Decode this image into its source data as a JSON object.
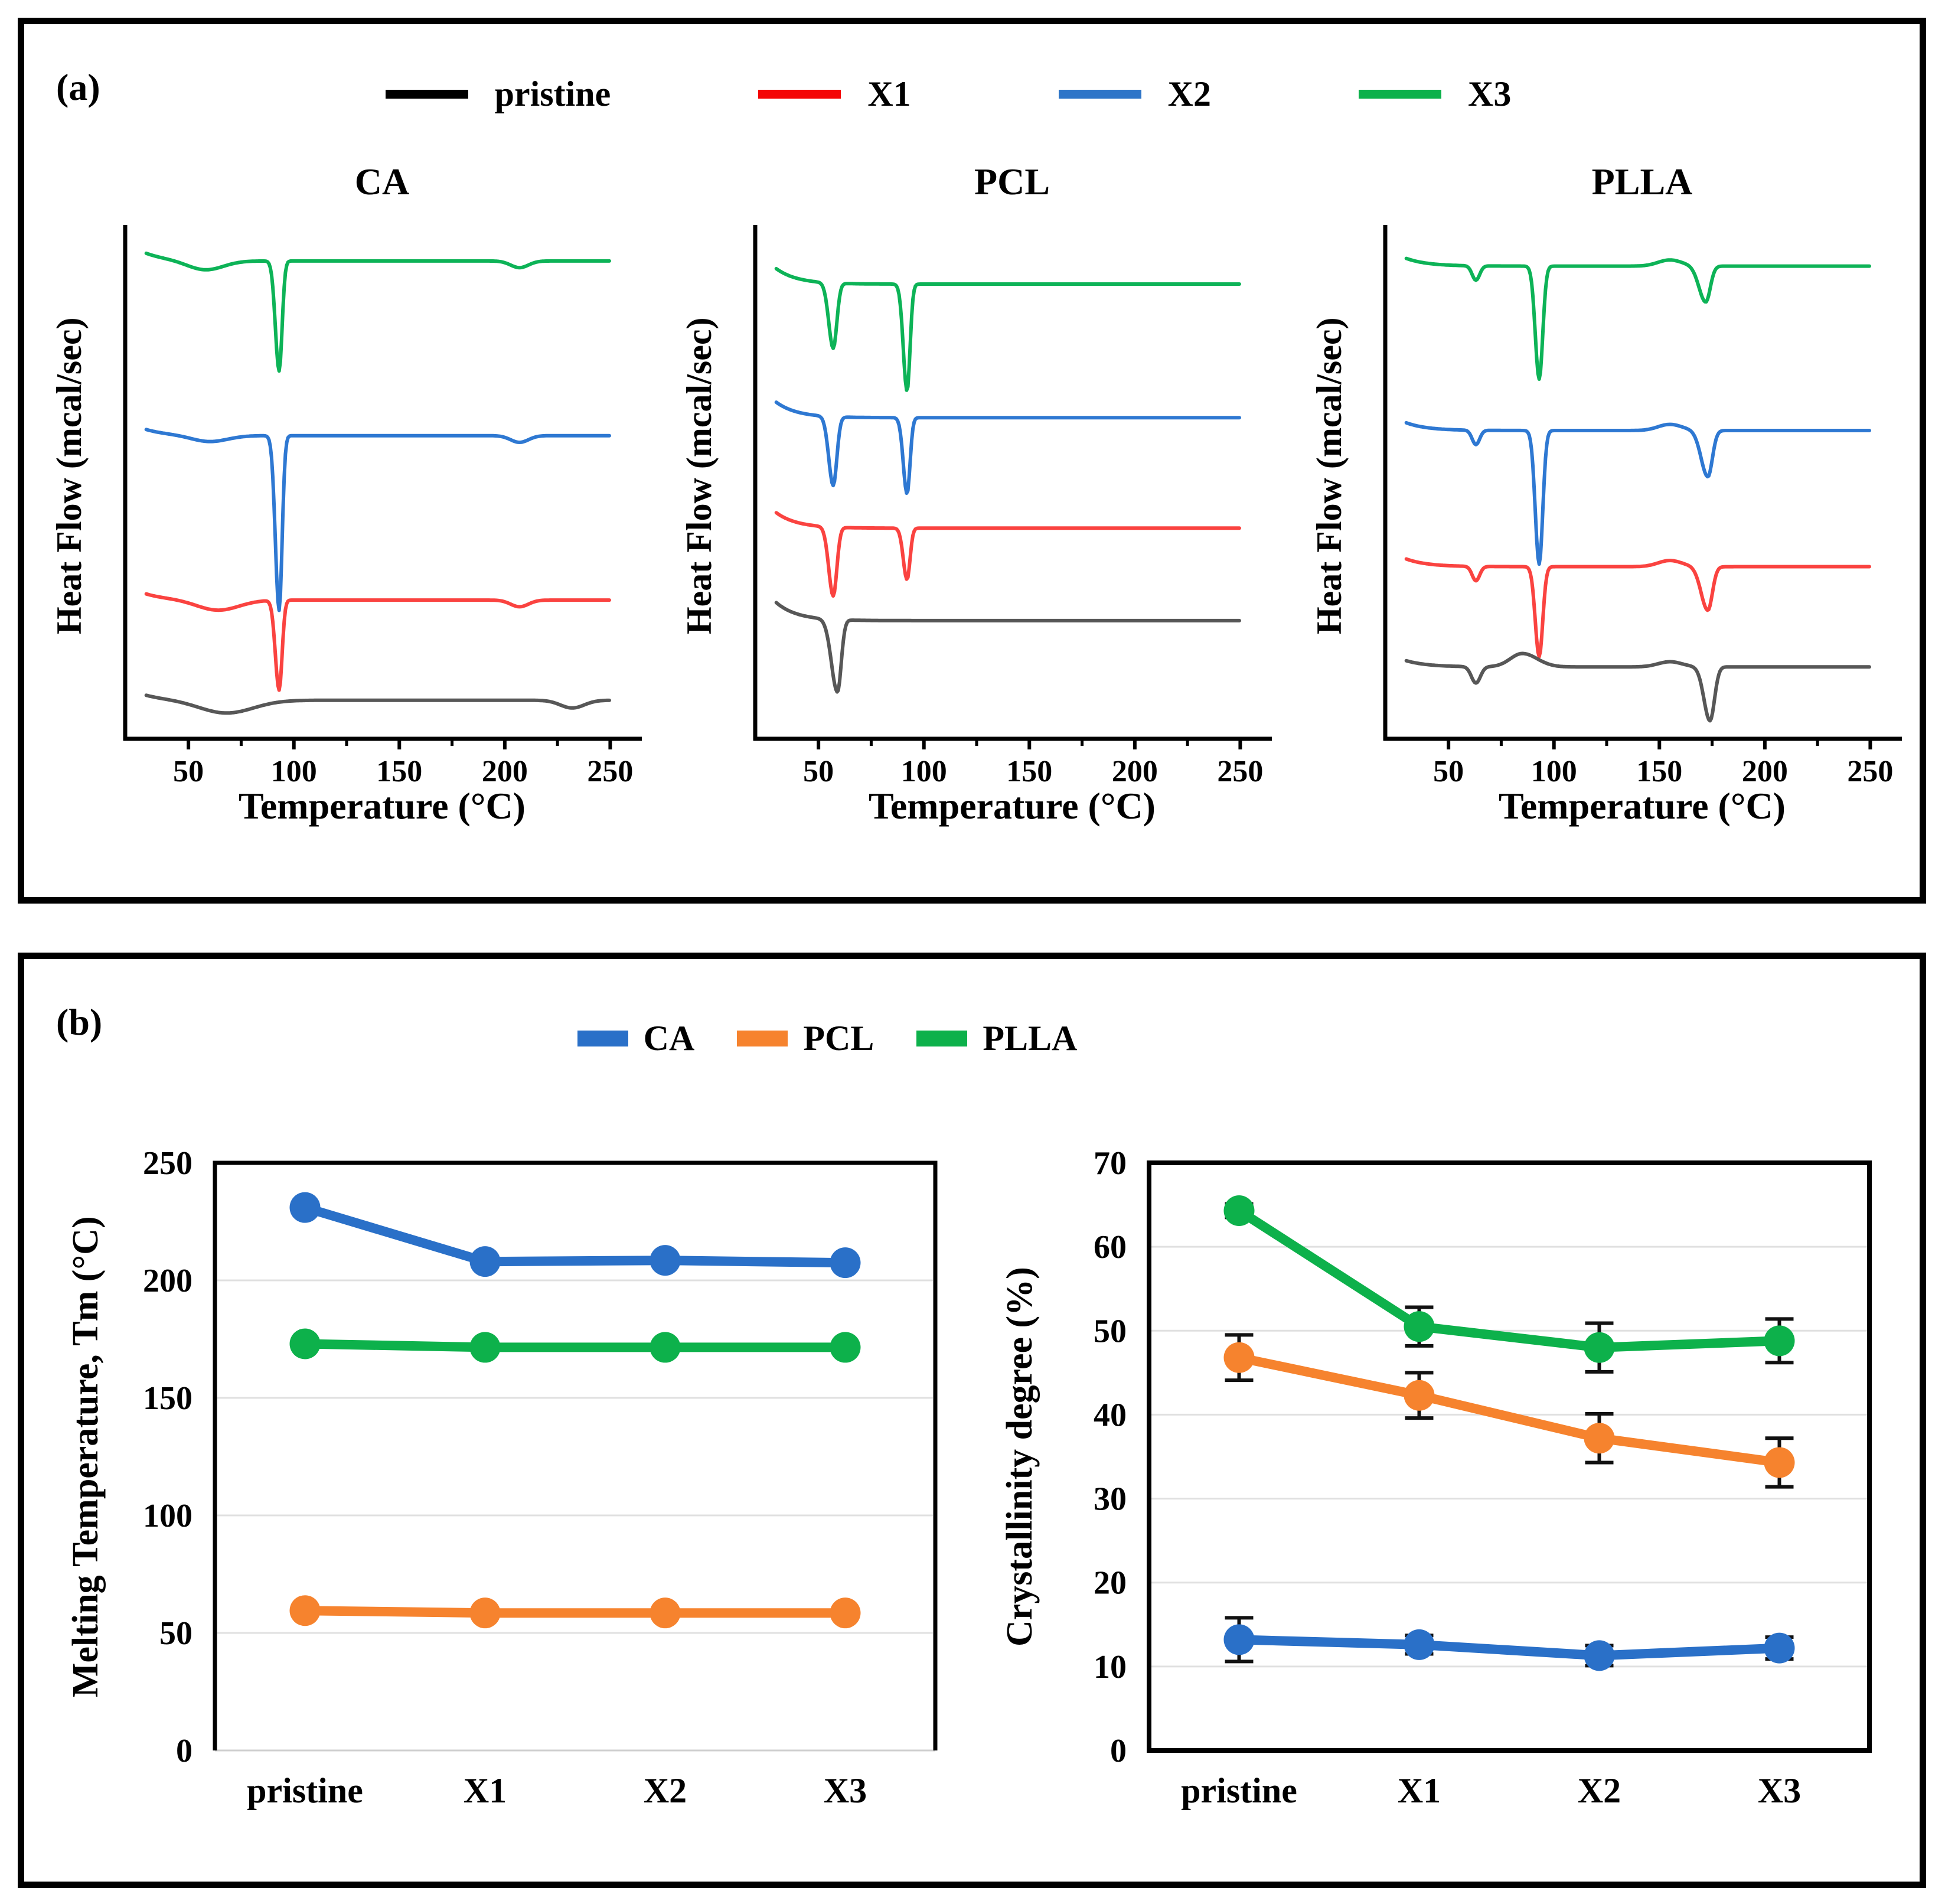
{
  "panel_a": {
    "label": "(a)",
    "legend": [
      {
        "label": "pristine",
        "color": "#000000"
      },
      {
        "label": "X1",
        "color": "#f40505"
      },
      {
        "label": "X2",
        "color": "#2e75c8"
      },
      {
        "label": "X3",
        "color": "#0db14b"
      }
    ],
    "x_ticks": [
      50,
      100,
      150,
      200,
      250
    ],
    "x_minor_ticks": [
      75,
      125,
      175,
      225
    ],
    "subplots": [
      {
        "title": "CA",
        "ylabel": "Heat Flow (mcal/sec)",
        "xlabel": "Temperature (°C)",
        "curves": [
          {
            "series": "X3",
            "color": "#0db357",
            "base": 0.07,
            "start": 0.015,
            "peaks": [
              [
                58,
                0.018,
                12,
                12
              ],
              [
                93,
                0.214,
                2.5,
                2.0
              ],
              [
                207,
                0.013,
                6,
                6
              ]
            ]
          },
          {
            "series": "X2",
            "color": "#2e78d2",
            "base": 0.41,
            "start": 0.012,
            "peaks": [
              [
                60,
                0.012,
                12,
                12
              ],
              [
                93,
                0.34,
                2.5,
                2.0
              ],
              [
                207,
                0.013,
                6,
                6
              ]
            ]
          },
          {
            "series": "X1",
            "color": "#fa4340",
            "base": 0.73,
            "start": 0.012,
            "peaks": [
              [
                64,
                0.02,
                14,
                14
              ],
              [
                93,
                0.175,
                2.5,
                2.0
              ],
              [
                207,
                0.013,
                6,
                6
              ]
            ]
          },
          {
            "series": "pristine",
            "color": "#575757",
            "base": 0.925,
            "start": 0.01,
            "peaks": [
              [
                68,
                0.025,
                18,
                18
              ],
              [
                232,
                0.015,
                8,
                8
              ]
            ]
          }
        ]
      },
      {
        "title": "PCL",
        "ylabel": "Heat Flow (mcal/sec)",
        "xlabel": "Temperature (°C)",
        "curves": [
          {
            "series": "X3",
            "color": "#0db357",
            "base": 0.115,
            "start": 0.03,
            "peaks": [
              [
                57,
                0.127,
                3,
                2.4
              ],
              [
                92,
                0.208,
                2.5,
                2.0
              ]
            ]
          },
          {
            "series": "X2",
            "color": "#2e78d2",
            "base": 0.375,
            "start": 0.03,
            "peaks": [
              [
                57,
                0.134,
                3,
                2.4
              ],
              [
                92,
                0.148,
                2.5,
                2.0
              ]
            ]
          },
          {
            "series": "X1",
            "color": "#fa4340",
            "base": 0.59,
            "start": 0.03,
            "peaks": [
              [
                57,
                0.134,
                3,
                2.4
              ],
              [
                92,
                0.1,
                2.5,
                2.0
              ]
            ]
          },
          {
            "series": "pristine",
            "color": "#575757",
            "base": 0.77,
            "start": 0.035,
            "peaks": [
              [
                59,
                0.141,
                4,
                2.5
              ]
            ]
          }
        ]
      },
      {
        "title": "PLLA",
        "ylabel": "Heat Flow (mcal/sec)",
        "xlabel": "Temperature (°C)",
        "curves": [
          {
            "series": "X3",
            "color": "#0db357",
            "base": 0.08,
            "start": 0.015,
            "peaks": [
              [
                63,
                0.028,
                2.5,
                2.5
              ],
              [
                93,
                0.22,
                2.6,
                2.4
              ],
              [
                155,
                -0.012,
                8,
                8
              ],
              [
                172,
                0.07,
                4.5,
                3.0
              ]
            ]
          },
          {
            "series": "X2",
            "color": "#2e78d2",
            "base": 0.4,
            "start": 0.015,
            "peaks": [
              [
                63,
                0.028,
                2.5,
                2.5
              ],
              [
                93,
                0.26,
                2.6,
                2.4
              ],
              [
                155,
                -0.012,
                8,
                8
              ],
              [
                173,
                0.09,
                4.5,
                3.0
              ]
            ]
          },
          {
            "series": "X1",
            "color": "#fa4340",
            "base": 0.665,
            "start": 0.015,
            "peaks": [
              [
                63,
                0.028,
                2.5,
                2.5
              ],
              [
                93,
                0.175,
                2.6,
                2.4
              ],
              [
                155,
                -0.012,
                8,
                8
              ],
              [
                173,
                0.085,
                4.5,
                3.0
              ]
            ]
          },
          {
            "series": "pristine",
            "color": "#575757",
            "base": 0.86,
            "start": 0.012,
            "peaks": [
              [
                63,
                0.032,
                3,
                3
              ],
              [
                85,
                -0.026,
                8,
                10
              ],
              [
                155,
                -0.01,
                8,
                8
              ],
              [
                174,
                0.105,
                4,
                3
              ]
            ]
          }
        ]
      }
    ]
  },
  "panel_b": {
    "label": "(b)",
    "legend": [
      {
        "label": "CA",
        "color": "#2a70c8"
      },
      {
        "label": "PCL",
        "color": "#f6832e"
      },
      {
        "label": "PLLA",
        "color": "#0db14b"
      }
    ],
    "left_chart": {
      "ylabel": "Melting Temperature, Tm (°C)",
      "y_ticks": [
        0,
        50,
        100,
        150,
        200,
        250
      ],
      "y_max": 250,
      "frame": "open-bottom",
      "categories": [
        "pristine",
        "X1",
        "X2",
        "X3"
      ],
      "series": [
        {
          "name": "CA",
          "color": "#2a70c8",
          "values": [
            231,
            208,
            208.5,
            207.5
          ]
        },
        {
          "name": "PLLA",
          "color": "#0db14b",
          "values": [
            173,
            171.5,
            171.5,
            171.5
          ]
        },
        {
          "name": "PCL",
          "color": "#f6832e",
          "values": [
            59.5,
            58.5,
            58.5,
            58.5
          ]
        }
      ]
    },
    "right_chart": {
      "ylabel": "Crystallinity  degree (%)",
      "y_ticks": [
        0,
        10,
        20,
        30,
        40,
        50,
        60,
        70
      ],
      "y_max": 70,
      "frame": "full",
      "categories": [
        "pristine",
        "X1",
        "X2",
        "X3"
      ],
      "series": [
        {
          "name": "PLLA",
          "color": "#0db14b",
          "values": [
            64.3,
            50.5,
            48.0,
            48.8
          ],
          "errors": [
            0.8,
            2.3,
            2.9,
            2.6
          ]
        },
        {
          "name": "PCL",
          "color": "#f6832e",
          "values": [
            46.8,
            42.3,
            37.2,
            34.3
          ],
          "errors": [
            2.7,
            2.7,
            2.9,
            2.9
          ]
        },
        {
          "name": "CA",
          "color": "#2a70c8",
          "values": [
            13.2,
            12.6,
            11.3,
            12.2
          ],
          "errors": [
            2.6,
            1.1,
            1.2,
            1.3
          ]
        }
      ]
    }
  },
  "chart_data": [
    {
      "type": "line",
      "id": "dsc-ca",
      "title": "CA",
      "xlabel": "Temperature (°C)",
      "ylabel": "Heat Flow (mcal/sec)",
      "x_range": [
        30,
        250
      ],
      "x_ticks": [
        50,
        100,
        150,
        200,
        250
      ],
      "note": "Stacked DSC thermograms, endothermic peaks point down; curves offset vertically in order X3, X2, X1, pristine (top to bottom).",
      "series": [
        {
          "name": "pristine",
          "endothermic_peaks_c": [
            68
          ]
        },
        {
          "name": "X1",
          "endothermic_peaks_c": [
            93,
            207
          ]
        },
        {
          "name": "X2",
          "endothermic_peaks_c": [
            93,
            207
          ]
        },
        {
          "name": "X3",
          "endothermic_peaks_c": [
            93,
            207
          ]
        }
      ]
    },
    {
      "type": "line",
      "id": "dsc-pcl",
      "title": "PCL",
      "xlabel": "Temperature (°C)",
      "ylabel": "Heat Flow (mcal/sec)",
      "x_range": [
        30,
        250
      ],
      "x_ticks": [
        50,
        100,
        150,
        200,
        250
      ],
      "series": [
        {
          "name": "pristine",
          "endothermic_peaks_c": [
            59
          ]
        },
        {
          "name": "X1",
          "endothermic_peaks_c": [
            57,
            92
          ]
        },
        {
          "name": "X2",
          "endothermic_peaks_c": [
            57,
            92
          ]
        },
        {
          "name": "X3",
          "endothermic_peaks_c": [
            57,
            92
          ]
        }
      ]
    },
    {
      "type": "line",
      "id": "dsc-plla",
      "title": "PLLA",
      "xlabel": "Temperature (°C)",
      "ylabel": "Heat Flow (mcal/sec)",
      "x_range": [
        30,
        250
      ],
      "x_ticks": [
        50,
        100,
        150,
        200,
        250
      ],
      "series": [
        {
          "name": "pristine",
          "endothermic_peaks_c": [
            63,
            174
          ]
        },
        {
          "name": "X1",
          "endothermic_peaks_c": [
            63,
            93,
            173
          ]
        },
        {
          "name": "X2",
          "endothermic_peaks_c": [
            63,
            93,
            173
          ]
        },
        {
          "name": "X3",
          "endothermic_peaks_c": [
            63,
            93,
            172
          ]
        }
      ]
    },
    {
      "type": "line",
      "id": "melting-temperature",
      "ylabel": "Melting Temperature, Tm (°C)",
      "categories": [
        "pristine",
        "X1",
        "X2",
        "X3"
      ],
      "ylim": [
        0,
        250
      ],
      "y_tick_step": 50,
      "grid": true,
      "legend_position": "top-center",
      "series": [
        {
          "name": "CA",
          "values": [
            231,
            208,
            208.5,
            207.5
          ]
        },
        {
          "name": "PCL",
          "values": [
            59.5,
            58.5,
            58.5,
            58.5
          ]
        },
        {
          "name": "PLLA",
          "values": [
            173,
            171.5,
            171.5,
            171.5
          ]
        }
      ]
    },
    {
      "type": "line",
      "id": "crystallinity-degree",
      "ylabel": "Crystallinity degree (%)",
      "categories": [
        "pristine",
        "X1",
        "X2",
        "X3"
      ],
      "ylim": [
        0,
        70
      ],
      "y_tick_step": 10,
      "grid": true,
      "legend_position": "top-center",
      "series": [
        {
          "name": "CA",
          "values": [
            13.2,
            12.6,
            11.3,
            12.2
          ],
          "errors": [
            2.6,
            1.1,
            1.2,
            1.3
          ]
        },
        {
          "name": "PCL",
          "values": [
            46.8,
            42.3,
            37.2,
            34.3
          ],
          "errors": [
            2.7,
            2.7,
            2.9,
            2.9
          ]
        },
        {
          "name": "PLLA",
          "values": [
            64.3,
            50.5,
            48.0,
            48.8
          ],
          "errors": [
            0.8,
            2.3,
            2.9,
            2.6
          ]
        }
      ]
    }
  ]
}
